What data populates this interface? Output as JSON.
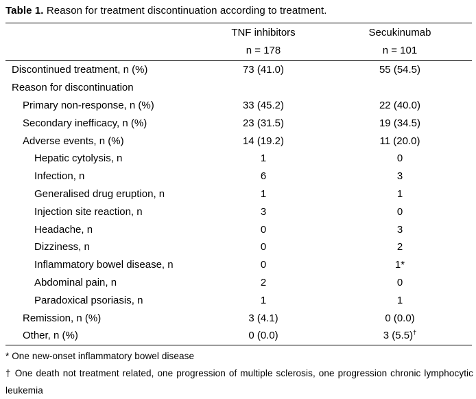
{
  "caption": {
    "label": "Table 1.",
    "text": "Reason for treatment discontinuation according to treatment."
  },
  "colors": {
    "text": "#000000",
    "background": "#ffffff",
    "rule": "#000000"
  },
  "table": {
    "columns": [
      {
        "name": "TNF inhibitors",
        "n": "n = 178"
      },
      {
        "name": "Secukinumab",
        "n": "n = 101"
      }
    ],
    "rows": [
      {
        "label": "Discontinued treatment, n (%)",
        "indent": 0,
        "tnf": "73 (41.0)",
        "sec": "55 (54.5)"
      },
      {
        "label": "Reason for discontinuation",
        "indent": 0,
        "tnf": "",
        "sec": ""
      },
      {
        "label": "Primary non-response, n (%)",
        "indent": 1,
        "tnf": "33 (45.2)",
        "sec": "22 (40.0)"
      },
      {
        "label": "Secondary inefficacy, n (%)",
        "indent": 1,
        "tnf": "23 (31.5)",
        "sec": "19 (34.5)"
      },
      {
        "label": "Adverse events, n (%)",
        "indent": 1,
        "tnf": "14 (19.2)",
        "sec": "11 (20.0)"
      },
      {
        "label": "Hepatic cytolysis, n",
        "indent": 2,
        "tnf": "1",
        "sec": "0"
      },
      {
        "label": "Infection, n",
        "indent": 2,
        "tnf": "6",
        "sec": "3"
      },
      {
        "label": "Generalised drug eruption, n",
        "indent": 2,
        "tnf": "1",
        "sec": "1"
      },
      {
        "label": "Injection site reaction, n",
        "indent": 2,
        "tnf": "3",
        "sec": "0"
      },
      {
        "label": "Headache, n",
        "indent": 2,
        "tnf": "0",
        "sec": "3"
      },
      {
        "label": "Dizziness, n",
        "indent": 2,
        "tnf": "0",
        "sec": "2"
      },
      {
        "label": "Inflammatory bowel disease, n",
        "indent": 2,
        "tnf": "0",
        "sec": "1*"
      },
      {
        "label": "Abdominal pain, n",
        "indent": 2,
        "tnf": "2",
        "sec": "0"
      },
      {
        "label": "Paradoxical psoriasis, n",
        "indent": 2,
        "tnf": "1",
        "sec": "1"
      },
      {
        "label": "Remission, n (%)",
        "indent": 1,
        "tnf": "3 (4.1)",
        "sec": "0 (0.0)"
      },
      {
        "label": "Other, n (%)",
        "indent": 1,
        "tnf": "0 (0.0)",
        "sec": "3 (5.5)",
        "sec_sup": "†"
      }
    ]
  },
  "footnotes": [
    "* One new-onset inflammatory bowel disease",
    "† One death not treatment related, one progression of multiple sclerosis, one progression chronic lymphocytic leukemia"
  ]
}
